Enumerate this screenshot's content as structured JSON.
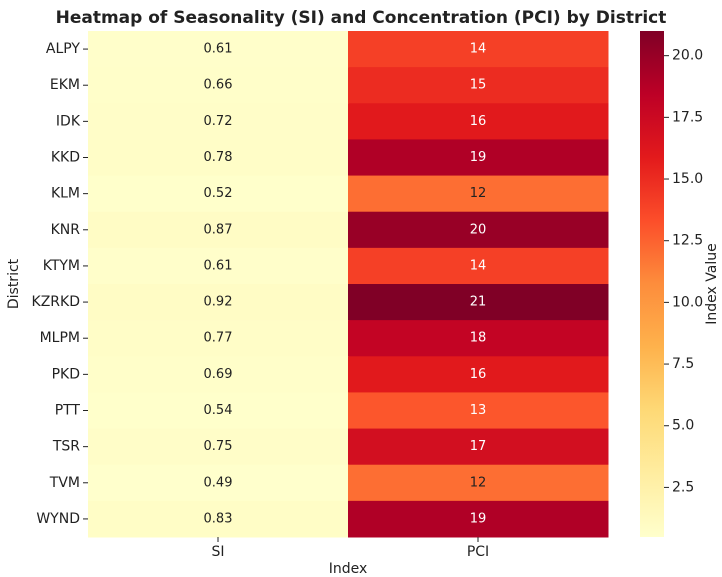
{
  "chart_data": {
    "type": "heatmap",
    "title": "Heatmap of Seasonality (SI) and Concentration (PCI) by District",
    "x_label": "Index",
    "y_label": "District",
    "colorbar_label": "Index Value",
    "colormap": "YlOrRd",
    "x_categories": [
      "SI",
      "PCI"
    ],
    "y_categories": [
      "ALPY",
      "EKM",
      "IDK",
      "KKD",
      "KLM",
      "KNR",
      "KTYM",
      "KZRKD",
      "MLPM",
      "PKD",
      "PTT",
      "TSR",
      "TVM",
      "WYND"
    ],
    "values": [
      [
        0.61,
        14
      ],
      [
        0.66,
        15
      ],
      [
        0.72,
        16
      ],
      [
        0.78,
        19
      ],
      [
        0.52,
        12
      ],
      [
        0.87,
        20
      ],
      [
        0.61,
        14
      ],
      [
        0.92,
        21
      ],
      [
        0.77,
        18
      ],
      [
        0.69,
        16
      ],
      [
        0.54,
        13
      ],
      [
        0.75,
        17
      ],
      [
        0.49,
        12
      ],
      [
        0.83,
        19
      ]
    ],
    "zlim": [
      0.49,
      21
    ],
    "zticks": [
      2.5,
      {
        "value": 5,
        "label": "5.0"
      },
      7.5,
      {
        "value": 10,
        "label": "10.0"
      },
      12.5,
      {
        "value": 15,
        "label": "15.0"
      },
      17.5,
      {
        "value": 20,
        "label": "20.0"
      }
    ]
  }
}
